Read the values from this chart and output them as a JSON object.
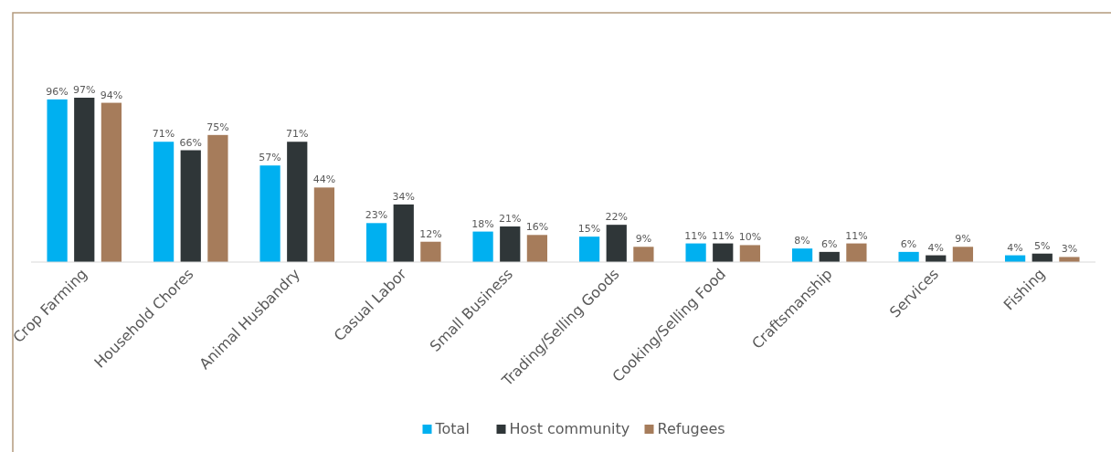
{
  "chart_data": {
    "type": "bar",
    "categories": [
      "Crop Farming",
      "Household Chores",
      "Animal Husbandry",
      "Casual Labor",
      "Small Business",
      "Trading/Selling Goods",
      "Cooking/Selling Food",
      "Craftsmanship",
      "Services",
      "Fishing"
    ],
    "series": [
      {
        "name": "Total",
        "color": "#00b0f0",
        "values": [
          96,
          71,
          57,
          23,
          18,
          15,
          11,
          8,
          6,
          4
        ],
        "value_labels": [
          "96%",
          "71%",
          "57%",
          "23%",
          "18%",
          "15%",
          "11%",
          "8%",
          "6%",
          "4%"
        ]
      },
      {
        "name": "Host community",
        "color": "#2f3638",
        "values": [
          97,
          66,
          71,
          34,
          21,
          22,
          11,
          6,
          4,
          5
        ],
        "value_labels": [
          "97%",
          "66%",
          "71%",
          "34%",
          "21%",
          "22%",
          "11%",
          "6%",
          "4%",
          "5%"
        ]
      },
      {
        "name": "Refugees",
        "color": "#a67c5b",
        "values": [
          94,
          75,
          44,
          12,
          16,
          9,
          10,
          11,
          9,
          3
        ],
        "value_labels": [
          "94%",
          "75%",
          "44%",
          "12%",
          "16%",
          "9%",
          "10%",
          "11%",
          "9%",
          "3%"
        ]
      }
    ],
    "legend": "bottom"
  }
}
